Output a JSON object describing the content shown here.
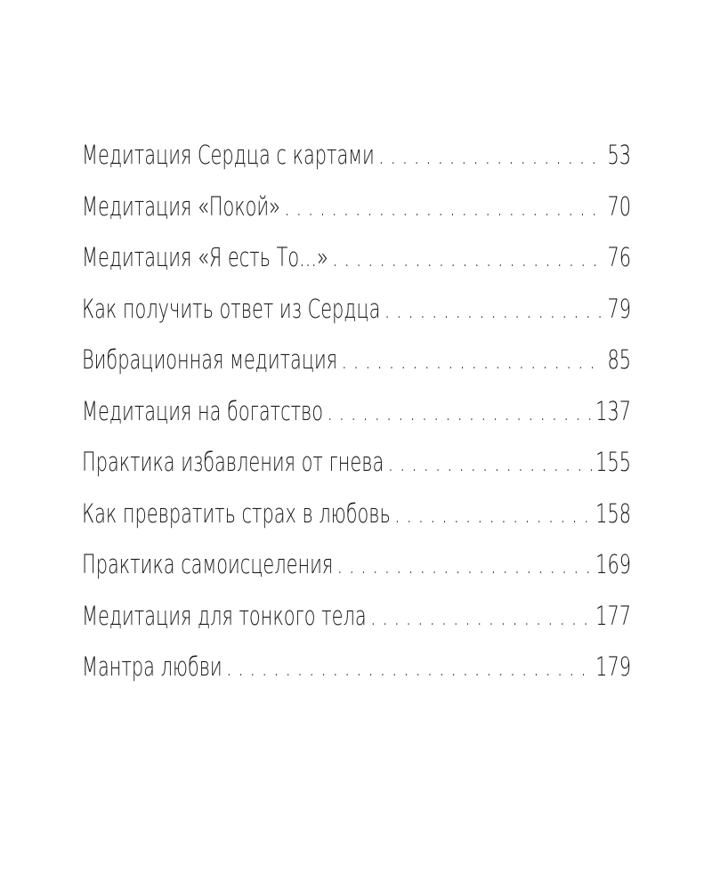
{
  "toc": {
    "entries": [
      {
        "title": "Медитация Сердца с картами",
        "page": "53"
      },
      {
        "title": "Медитация «Покой»",
        "page": "70"
      },
      {
        "title": "Медитация «Я есть То...»",
        "page": "76"
      },
      {
        "title": "Как получить ответ из Сердца",
        "page": "79"
      },
      {
        "title": "Вибрационная медитация",
        "page": "85"
      },
      {
        "title": "Медитация на богатство",
        "page": "137"
      },
      {
        "title": "Практика избавления от гнева",
        "page": "155"
      },
      {
        "title": "Как превратить страх в любовь",
        "page": "158"
      },
      {
        "title": "Практика самоисцеления",
        "page": "169"
      },
      {
        "title": "Медитация для тонкого тела",
        "page": "177"
      },
      {
        "title": "Мантра любви",
        "page": "179"
      }
    ]
  }
}
